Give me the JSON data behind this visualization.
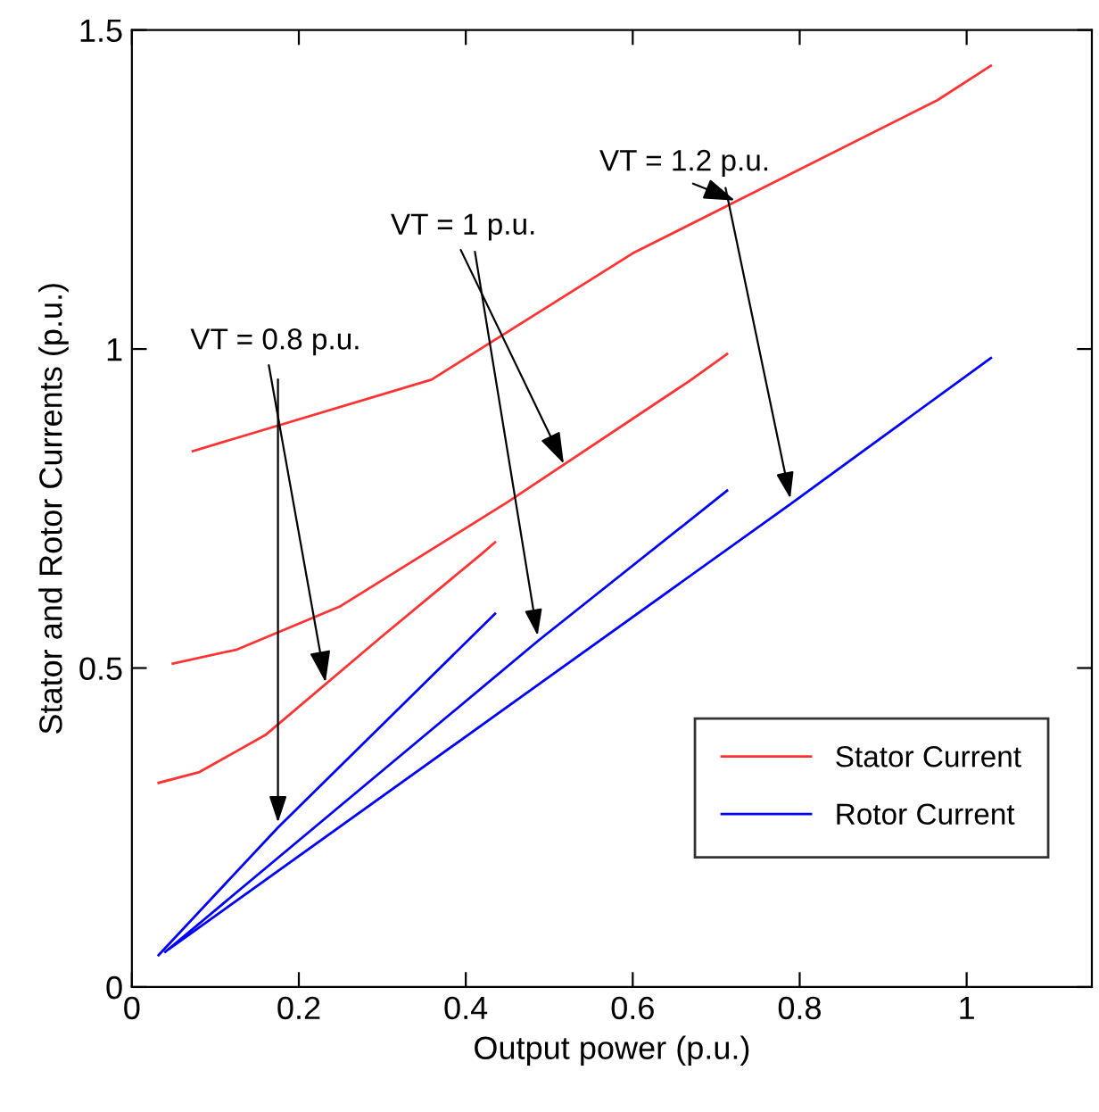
{
  "chart_data": {
    "type": "line",
    "xlabel": "Output power (p.u.)",
    "ylabel": "Stator and Rotor Currents (p.u.)",
    "xlim": [
      0,
      1.15
    ],
    "ylim": [
      0,
      1.5
    ],
    "xticks": [
      0,
      0.2,
      0.4,
      0.6,
      0.8,
      1
    ],
    "yticks": [
      0,
      0.5,
      1,
      1.5
    ],
    "grid": false,
    "legend": "bottom right",
    "series": [
      {
        "name": "Stator Current",
        "color": "#ff3333",
        "x": [
          0.032,
          0.081,
          0.16,
          0.3,
          0.42,
          0.435
        ],
        "values": [
          0.32,
          0.337,
          0.395,
          0.55,
          0.68,
          0.697
        ]
      },
      {
        "color": "#ff3333",
        "x": [
          0.049,
          0.126,
          0.25,
          0.45,
          0.668,
          0.713
        ],
        "values": [
          0.507,
          0.529,
          0.597,
          0.76,
          0.95,
          0.992
        ]
      },
      {
        "color": "#ff3333",
        "x": [
          0.073,
          0.359,
          0.6,
          0.965,
          1.029
        ],
        "values": [
          0.84,
          0.952,
          1.15,
          1.39,
          1.444
        ]
      },
      {
        "name": "Rotor Current",
        "color": "#0000ff",
        "x": [
          0.032,
          0.175,
          0.435
        ],
        "values": [
          0.05,
          0.25,
          0.585
        ]
      },
      {
        "color": "#0000ff",
        "x": [
          0.04,
          0.487,
          0.713
        ],
        "values": [
          0.055,
          0.543,
          0.778
        ]
      },
      {
        "color": "#0000ff",
        "x": [
          0.045,
          0.79,
          1.029
        ],
        "values": [
          0.06,
          0.758,
          0.986
        ]
      }
    ],
    "annotations": [
      {
        "text": "VT = 0.8 p.u.",
        "x": 0.233,
        "y": 0.47
      },
      {
        "text": "VT = 1 p.u.",
        "x": 0.52,
        "y": 0.813
      },
      {
        "text": "VT = 1.2 p.u.",
        "x": 0.728,
        "y": 1.23
      }
    ]
  }
}
